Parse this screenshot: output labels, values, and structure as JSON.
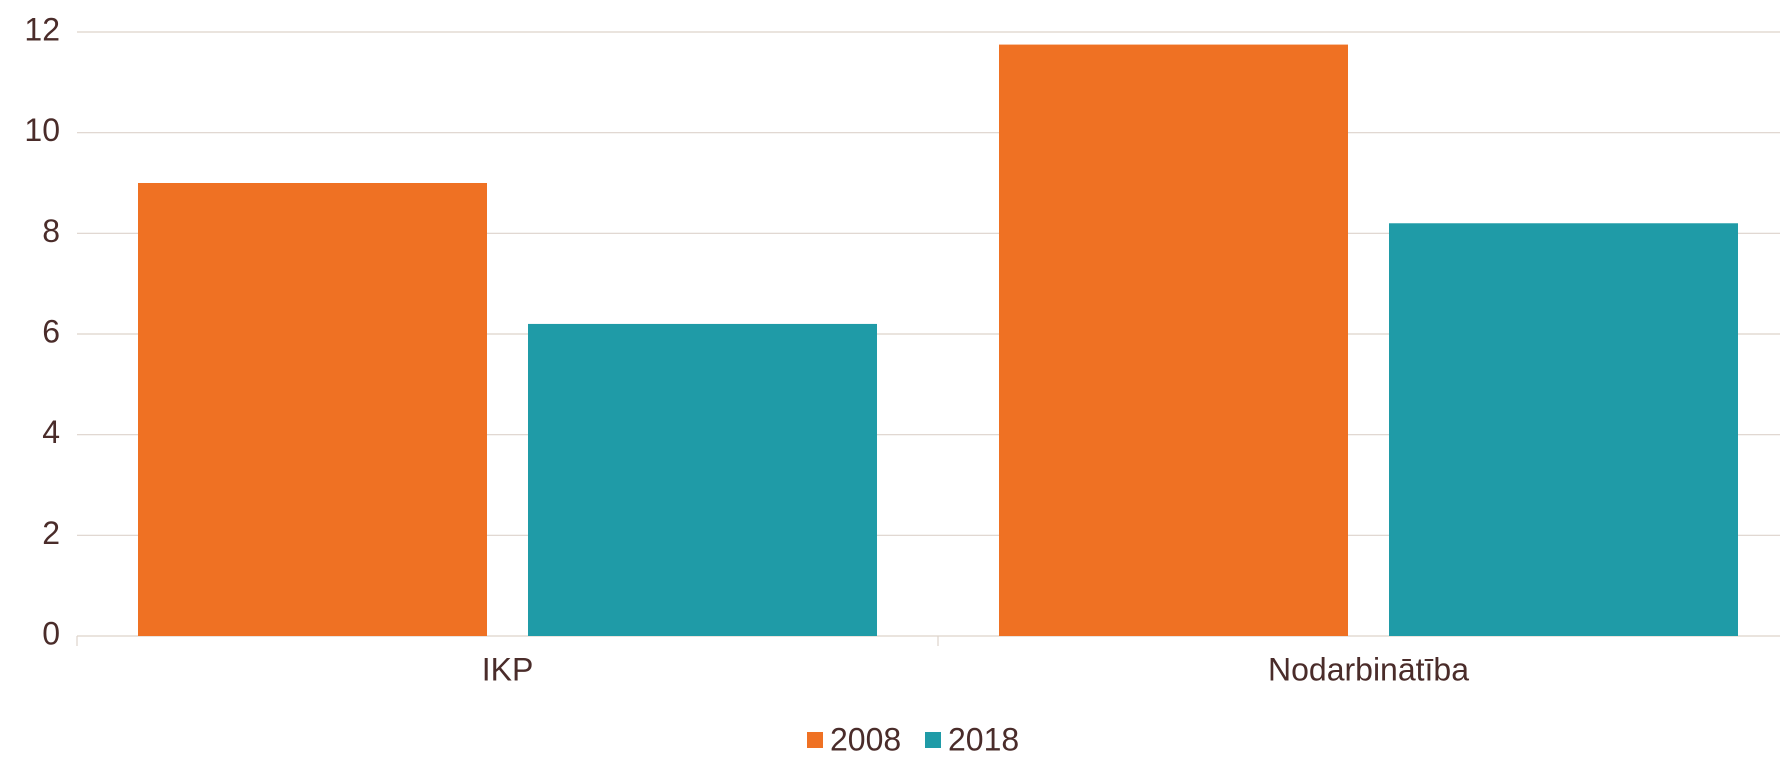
{
  "chart_data": {
    "type": "bar",
    "categories": [
      "IKP",
      "Nodarbinātība"
    ],
    "series": [
      {
        "name": "2008",
        "color": "#ef7123",
        "values": [
          9.0,
          11.75
        ]
      },
      {
        "name": "2018",
        "color": "#1f9ba7",
        "values": [
          6.2,
          8.2
        ]
      }
    ],
    "ylim": [
      0,
      12
    ],
    "yticks": [
      0,
      2,
      4,
      6,
      8,
      10,
      12
    ],
    "grid": true,
    "legend": "bottom"
  }
}
